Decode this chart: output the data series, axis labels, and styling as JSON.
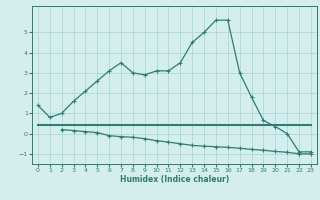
{
  "line1_x": [
    0,
    1,
    2,
    3,
    4,
    5,
    6,
    7,
    8,
    9,
    10,
    11,
    12,
    13,
    14,
    15,
    16,
    17,
    18,
    19,
    20,
    21,
    22,
    23
  ],
  "line1_y": [
    1.4,
    0.8,
    1.0,
    1.6,
    2.1,
    2.6,
    3.1,
    3.5,
    3.0,
    2.9,
    3.1,
    3.1,
    3.5,
    4.5,
    5.0,
    5.6,
    5.6,
    3.0,
    1.8,
    0.65,
    0.35,
    0.0,
    -0.9,
    -0.9
  ],
  "line2_x": [
    0,
    1,
    2,
    3,
    4,
    5,
    6,
    7,
    8,
    9,
    10,
    11,
    12,
    13,
    14,
    15,
    16,
    17,
    18,
    19,
    20,
    21,
    22,
    23
  ],
  "line2_y": [
    0.45,
    0.45,
    0.45,
    0.45,
    0.45,
    0.45,
    0.45,
    0.45,
    0.45,
    0.45,
    0.45,
    0.45,
    0.45,
    0.45,
    0.45,
    0.45,
    0.45,
    0.45,
    0.45,
    0.45,
    0.45,
    0.45,
    0.45,
    0.45
  ],
  "line3_x": [
    2,
    3,
    4,
    5,
    6,
    7,
    8,
    9,
    10,
    11,
    12,
    13,
    14,
    15,
    16,
    17,
    18,
    19,
    20,
    21,
    22,
    23
  ],
  "line3_y": [
    0.2,
    0.15,
    0.1,
    0.05,
    -0.1,
    -0.15,
    -0.18,
    -0.25,
    -0.35,
    -0.42,
    -0.5,
    -0.58,
    -0.62,
    -0.65,
    -0.68,
    -0.72,
    -0.78,
    -0.82,
    -0.88,
    -0.92,
    -1.0,
    -1.0
  ],
  "color": "#2e7d6e",
  "bg_color": "#d4eeee",
  "grid_color": "#aed8d8",
  "xlabel": "Humidex (Indice chaleur)",
  "ylim": [
    -1.5,
    6.3
  ],
  "xlim": [
    -0.5,
    23.5
  ],
  "yticks": [
    -1,
    0,
    1,
    2,
    3,
    4,
    5
  ],
  "xticks": [
    0,
    1,
    2,
    3,
    4,
    5,
    6,
    7,
    8,
    9,
    10,
    11,
    12,
    13,
    14,
    15,
    16,
    17,
    18,
    19,
    20,
    21,
    22,
    23
  ]
}
